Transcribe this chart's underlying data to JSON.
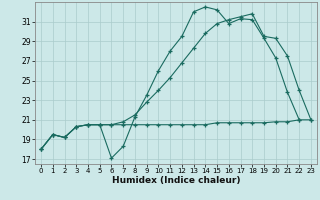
{
  "xlabel": "Humidex (Indice chaleur)",
  "bg_color": "#cce8e8",
  "line_color": "#1a6b60",
  "grid_color": "#aacccc",
  "xlim": [
    -0.5,
    23.5
  ],
  "ylim": [
    16.5,
    33.0
  ],
  "yticks": [
    17,
    19,
    21,
    23,
    25,
    27,
    29,
    31
  ],
  "xticks": [
    0,
    1,
    2,
    3,
    4,
    5,
    6,
    7,
    8,
    9,
    10,
    11,
    12,
    13,
    14,
    15,
    16,
    17,
    18,
    19,
    20,
    21,
    22,
    23
  ],
  "line1_x": [
    0,
    1,
    2,
    3,
    4,
    5,
    6,
    7,
    8,
    9,
    10,
    11,
    12,
    13,
    14,
    15,
    16,
    17,
    18,
    19,
    20,
    21,
    22
  ],
  "line1_y": [
    18.0,
    19.5,
    19.2,
    20.3,
    20.5,
    20.5,
    17.1,
    18.3,
    21.3,
    23.5,
    26.0,
    28.0,
    29.5,
    32.0,
    32.5,
    32.2,
    30.8,
    31.3,
    31.2,
    29.3,
    27.3,
    23.8,
    21.0
  ],
  "line2_x": [
    0,
    1,
    2,
    3,
    4,
    5,
    6,
    7,
    8,
    9,
    10,
    11,
    12,
    13,
    14,
    15,
    16,
    17,
    18,
    19,
    20,
    21,
    22,
    23
  ],
  "line2_y": [
    18.0,
    19.5,
    19.2,
    20.3,
    20.5,
    20.5,
    20.5,
    20.8,
    21.5,
    22.8,
    24.0,
    25.3,
    26.8,
    28.3,
    29.8,
    30.8,
    31.2,
    31.5,
    31.8,
    29.5,
    29.3,
    27.5,
    24.0,
    21.0
  ],
  "line3_x": [
    0,
    1,
    2,
    3,
    4,
    5,
    6,
    7,
    8,
    9,
    10,
    11,
    12,
    13,
    14,
    15,
    16,
    17,
    18,
    19,
    20,
    21,
    22,
    23
  ],
  "line3_y": [
    18.0,
    19.5,
    19.2,
    20.3,
    20.5,
    20.5,
    20.5,
    20.5,
    20.5,
    20.5,
    20.5,
    20.5,
    20.5,
    20.5,
    20.5,
    20.7,
    20.7,
    20.7,
    20.7,
    20.7,
    20.8,
    20.8,
    21.0,
    21.0
  ]
}
